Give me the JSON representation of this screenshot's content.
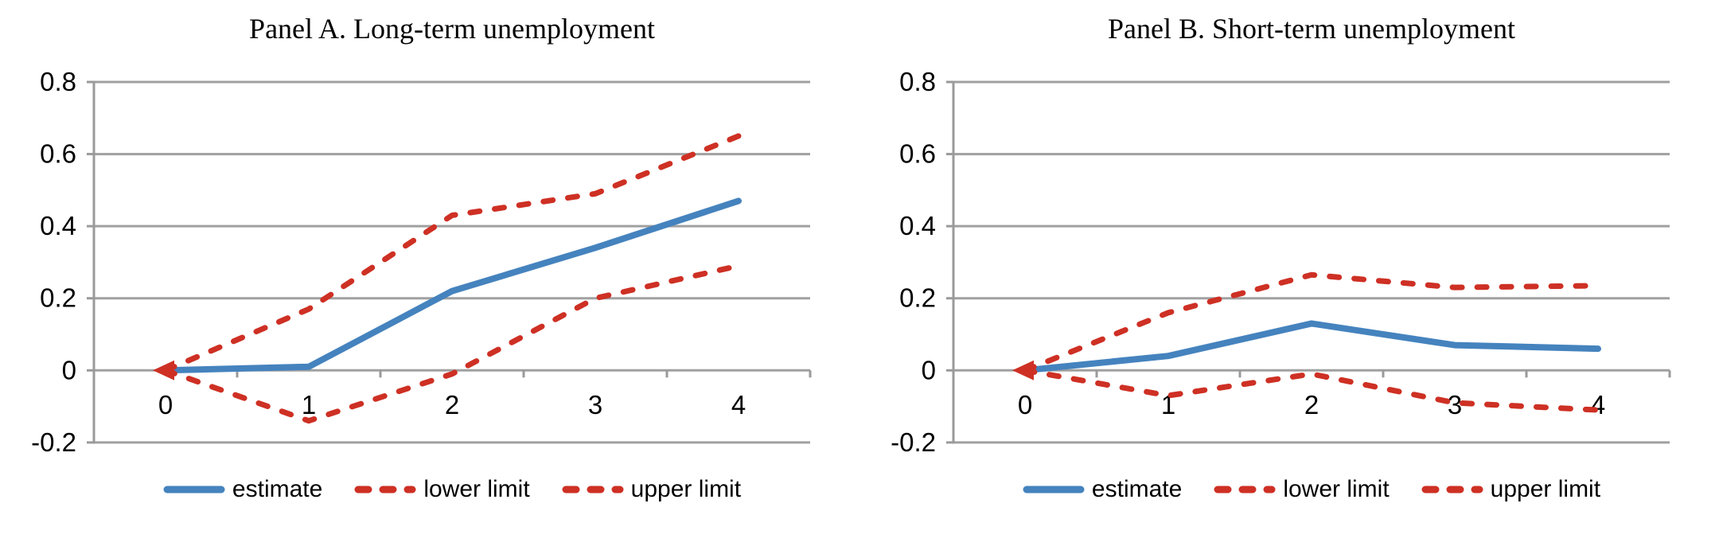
{
  "figure": {
    "background": "#ffffff",
    "text_color": "#000000"
  },
  "colors": {
    "estimate_line": "#4583BE",
    "limit_line": "#CE3024",
    "gridline": "#A0A0A0",
    "axis": "#9A9A9A"
  },
  "chart_data": [
    {
      "type": "line",
      "title": "Panel A. Long-term unemployment",
      "x": [
        0,
        1,
        2,
        3,
        4
      ],
      "xtick_labels": [
        "0",
        "1",
        "2",
        "3",
        "4"
      ],
      "ytick_values": [
        0.8,
        0.6,
        0.4,
        0.2,
        0,
        -0.2
      ],
      "ytick_labels": [
        "0.8",
        "0.6",
        "0.4",
        "0.2",
        "0",
        "-0.2"
      ],
      "ylim": [
        -0.2,
        0.8
      ],
      "grid": true,
      "legend_position": "bottom",
      "series": [
        {
          "name": "estimate",
          "line_style": "solid",
          "color": "#4583BE",
          "values": [
            0,
            0.01,
            0.22,
            0.34,
            0.47
          ]
        },
        {
          "name": "lower limit",
          "line_style": "dashed",
          "color": "#CE3024",
          "values": [
            0,
            -0.14,
            -0.01,
            0.2,
            0.29
          ]
        },
        {
          "name": "upper limit",
          "line_style": "dashed",
          "color": "#CE3024",
          "values": [
            0,
            0.17,
            0.43,
            0.49,
            0.65
          ]
        }
      ]
    },
    {
      "type": "line",
      "title": "Panel B. Short-term unemployment",
      "x": [
        0,
        1,
        2,
        3,
        4
      ],
      "xtick_labels": [
        "0",
        "1",
        "2",
        "3",
        "4"
      ],
      "ytick_values": [
        0.8,
        0.6,
        0.4,
        0.2,
        0,
        -0.2
      ],
      "ytick_labels": [
        "0.8",
        "0.6",
        "0.4",
        "0.2",
        "0",
        "-0.2"
      ],
      "ylim": [
        -0.2,
        0.8
      ],
      "grid": true,
      "legend_position": "bottom",
      "series": [
        {
          "name": "estimate",
          "line_style": "solid",
          "color": "#4583BE",
          "values": [
            0,
            0.04,
            0.13,
            0.07,
            0.06
          ]
        },
        {
          "name": "lower limit",
          "line_style": "dashed",
          "color": "#CE3024",
          "values": [
            0,
            -0.07,
            -0.01,
            -0.09,
            -0.11
          ]
        },
        {
          "name": "upper limit",
          "line_style": "dashed",
          "color": "#CE3024",
          "values": [
            0,
            0.16,
            0.265,
            0.23,
            0.235
          ]
        }
      ]
    }
  ]
}
